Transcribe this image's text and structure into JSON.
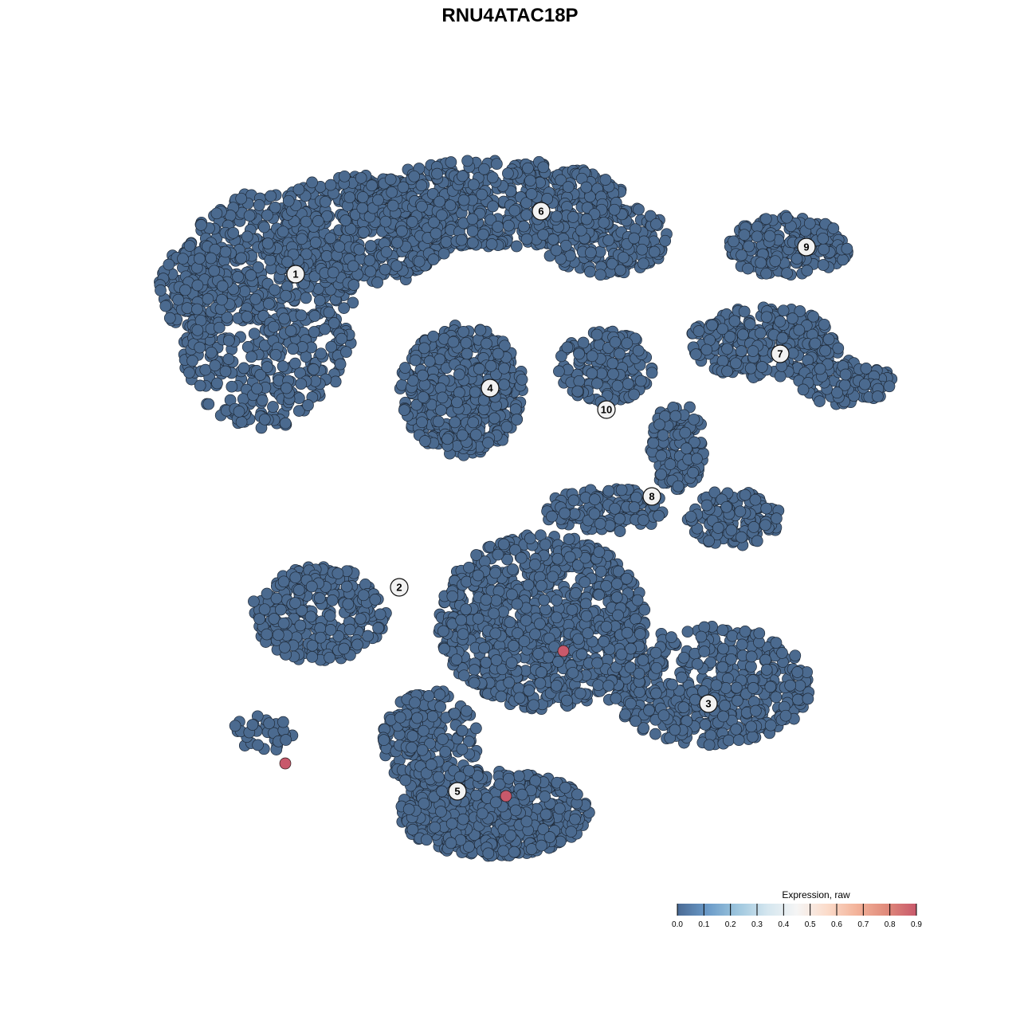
{
  "chart_data": {
    "type": "scatter",
    "title": "RNU4ATAC18P",
    "xlabel": "",
    "ylabel": "",
    "axes_visible": false,
    "grid": false,
    "point_fill_default": "#4b6a8f",
    "clusters": [
      {
        "label": "1",
        "x": -26.9,
        "y": 29.6
      },
      {
        "label": "2",
        "x": -13.9,
        "y": -9.7
      },
      {
        "label": "3",
        "x": 24.9,
        "y": -24.3
      },
      {
        "label": "4",
        "x": -2.5,
        "y": 15.3
      },
      {
        "label": "5",
        "x": -6.6,
        "y": -35.3
      },
      {
        "label": "6",
        "x": 3.9,
        "y": 37.5
      },
      {
        "label": "7",
        "x": 33.9,
        "y": 19.6
      },
      {
        "label": "8",
        "x": 17.8,
        "y": 1.7
      },
      {
        "label": "9",
        "x": 37.2,
        "y": 33.0
      },
      {
        "label": "10",
        "x": 12.1,
        "y": 12.6
      }
    ],
    "expressing_points": [
      {
        "x": 6.7,
        "y": -17.7,
        "value": 0.9
      },
      {
        "x": -28.2,
        "y": -31.8,
        "value": 0.9
      },
      {
        "x": -0.5,
        "y": -35.9,
        "value": 0.9
      }
    ],
    "default_value": 0.0,
    "legend": {
      "title": "Expression, raw",
      "placement": "bottom-right",
      "ticks": [
        "0.0",
        "0.1",
        "0.2",
        "0.3",
        "0.4",
        "0.5",
        "0.6",
        "0.7",
        "0.8",
        "0.9"
      ],
      "range": [
        0,
        0.9
      ],
      "colors": [
        "#4a6a94",
        "#6a9ac8",
        "#9dc6de",
        "#d4e6ef",
        "#f5f5f5",
        "#fbdccb",
        "#f3b39a",
        "#e08a7b",
        "#c8596b"
      ]
    }
  }
}
